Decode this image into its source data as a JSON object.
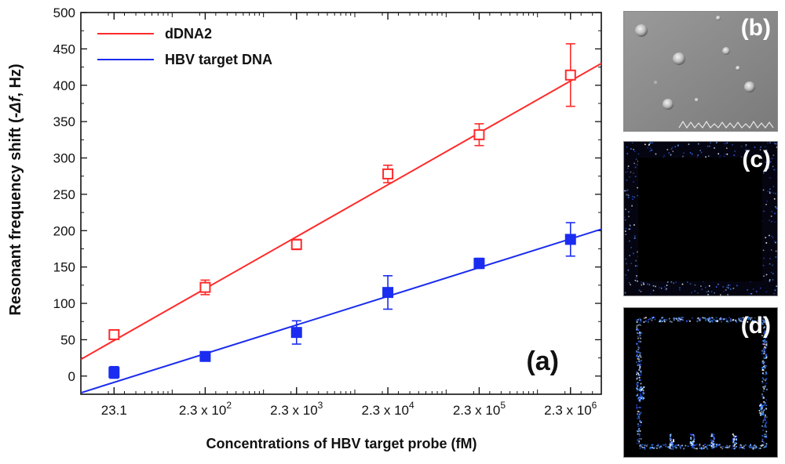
{
  "chart_data": {
    "type": "scatter",
    "title": "",
    "xlabel": "Concentrations of HBV target probe (fM)",
    "ylabel": "Resonant frequency shift (-",
    "ylabel_symbol": "Δf",
    "ylabel_suffix": ", Hz)",
    "x_scale": "log",
    "xlim": [
      10,
      5000000
    ],
    "ylim": [
      -25,
      500
    ],
    "y_ticks": [
      0,
      50,
      100,
      150,
      200,
      250,
      300,
      350,
      400,
      450,
      500
    ],
    "x_ticks": [
      {
        "value": 23.1,
        "base": "23.1",
        "exp": ""
      },
      {
        "value": 230,
        "base": "2.3 x 10",
        "exp": "2"
      },
      {
        "value": 2300,
        "base": "2.3 x 10",
        "exp": "3"
      },
      {
        "value": 23000,
        "base": "2.3 x 10",
        "exp": "4"
      },
      {
        "value": 230000,
        "base": "2.3 x 10",
        "exp": "5"
      },
      {
        "value": 2300000,
        "base": "2.3 x 10",
        "exp": "6"
      }
    ],
    "series": [
      {
        "name": "dDNA2",
        "color": "#ff2a2a",
        "marker": "open-square",
        "x": [
          23.1,
          230,
          2300,
          23000,
          230000,
          2300000
        ],
        "y": [
          57,
          122,
          181,
          278,
          332,
          414
        ],
        "err": [
          6,
          10,
          7,
          12,
          15,
          43
        ],
        "fit": [
          [
            10,
            23
          ],
          [
            5000000,
            430
          ]
        ]
      },
      {
        "name": "HBV target DNA",
        "color": "#1a2cf0",
        "marker": "filled-square",
        "x": [
          23.1,
          230,
          2300,
          23000,
          230000,
          2300000
        ],
        "y": [
          5,
          27,
          60,
          115,
          155,
          188
        ],
        "err": [
          8,
          5,
          16,
          23,
          7,
          23
        ],
        "fit": [
          [
            10,
            -23
          ],
          [
            5000000,
            202
          ]
        ]
      }
    ],
    "annotations": [
      "(a)"
    ]
  },
  "panels": {
    "b": {
      "label": "(b)",
      "image": "SEM micrograph with spherical particles"
    },
    "c": {
      "label": "(c)",
      "image": "fluorescence image, square pad with scattered dots"
    },
    "d": {
      "label": "(d)",
      "image": "fluorescence image, square outline with bright edge dots"
    }
  }
}
